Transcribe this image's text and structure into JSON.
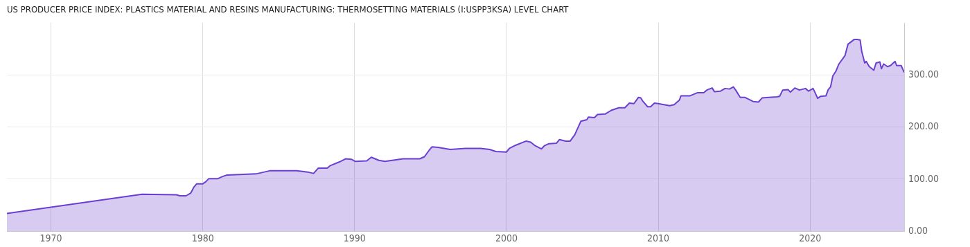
{
  "chart_data": {
    "type": "area",
    "title": "US PRODUCER PRICE INDEX: PLASTICS MATERIAL AND RESINS MANUFACTURING: THERMOSETTING MATERIALS (I:USPP3KSA) LEVEL CHART",
    "x": [
      1967.1,
      1976.0,
      1978.25,
      1978.5,
      1978.9,
      1979.2,
      1979.4,
      1979.6,
      1980.0,
      1980.2,
      1980.4,
      1981.0,
      1981.3,
      1981.6,
      1983.5,
      1984.4,
      1986.2,
      1987.0,
      1987.3,
      1987.6,
      1988.2,
      1988.4,
      1989.0,
      1989.4,
      1989.8,
      1990.05,
      1990.8,
      1991.1,
      1991.6,
      1992.0,
      1993.2,
      1994.3,
      1994.6,
      1994.9,
      1995.1,
      1995.5,
      1996.3,
      1997.3,
      1998.3,
      1998.9,
      1999.3,
      2000.0,
      2000.2,
      2000.6,
      2001.3,
      2001.6,
      2001.9,
      2002.3,
      2002.5,
      2002.8,
      2003.3,
      2003.5,
      2003.9,
      2004.2,
      2004.5,
      2004.9,
      2005.3,
      2005.4,
      2005.8,
      2006.0,
      2006.5,
      2006.9,
      2007.4,
      2007.8,
      2008.1,
      2008.4,
      2008.7,
      2008.85,
      2009.0,
      2009.3,
      2009.5,
      2009.75,
      2010.0,
      2010.75,
      2011.05,
      2011.4,
      2011.5,
      2012.1,
      2012.6,
      2013.0,
      2013.2,
      2013.55,
      2013.7,
      2014.1,
      2014.4,
      2014.7,
      2014.95,
      2015.1,
      2015.4,
      2015.7,
      2016.25,
      2016.6,
      2016.85,
      2017.3,
      2017.8,
      2018.0,
      2018.2,
      2018.55,
      2018.7,
      2019.0,
      2019.3,
      2019.7,
      2019.9,
      2020.2,
      2020.3,
      2020.5,
      2020.7,
      2021.05,
      2021.2,
      2021.35,
      2021.5,
      2021.7,
      2021.9,
      2022.3,
      2022.5,
      2022.9,
      2023.1,
      2023.3,
      2023.4,
      2023.6,
      2023.7,
      2023.9,
      2024.2,
      2024.35,
      2024.6,
      2024.7,
      2024.85,
      2025.1,
      2025.3,
      2025.6,
      2025.7,
      2026.0,
      2026.2
    ],
    "series": [
      {
        "color": "#6a3fd0",
        "values": [
          34,
          71,
          70,
          68,
          68,
          73,
          84,
          91,
          91,
          95,
          101,
          101,
          105,
          108,
          110,
          116,
          116,
          113,
          111,
          121,
          121,
          126,
          133,
          139,
          138,
          134,
          135,
          142,
          136,
          134,
          139,
          139,
          143,
          155,
          162,
          161,
          157,
          159,
          159,
          157,
          153,
          152,
          159,
          165,
          173,
          171,
          164,
          158,
          164,
          168,
          169,
          176,
          173,
          173,
          185,
          211,
          214,
          219,
          218,
          224,
          225,
          232,
          237,
          237,
          246,
          245,
          257,
          256,
          249,
          239,
          239,
          246,
          245,
          241,
          243,
          252,
          260,
          260,
          266,
          266,
          271,
          275,
          268,
          269,
          274,
          273,
          277,
          271,
          257,
          257,
          249,
          248,
          256,
          257,
          258,
          259,
          271,
          272,
          267,
          275,
          271,
          274,
          269,
          274,
          268,
          255,
          259,
          260,
          272,
          277,
          298,
          307,
          321,
          337,
          359,
          368,
          368,
          367,
          346,
          323,
          326,
          316,
          309,
          323,
          325,
          312,
          321,
          316,
          318,
          326,
          318,
          318,
          305
        ]
      }
    ],
    "xlim": [
      1967.1,
      2026.2
    ],
    "xticks": [
      1970,
      1980,
      1990,
      2000,
      2010,
      2020
    ],
    "ylim": [
      0,
      400
    ],
    "yticks": [
      {
        "value": 0,
        "label": "0.00"
      },
      {
        "value": 100,
        "label": "100.00"
      },
      {
        "value": 200,
        "label": "200.00"
      },
      {
        "value": 300,
        "label": "300.00"
      }
    ],
    "grid": true,
    "marker": "none"
  }
}
